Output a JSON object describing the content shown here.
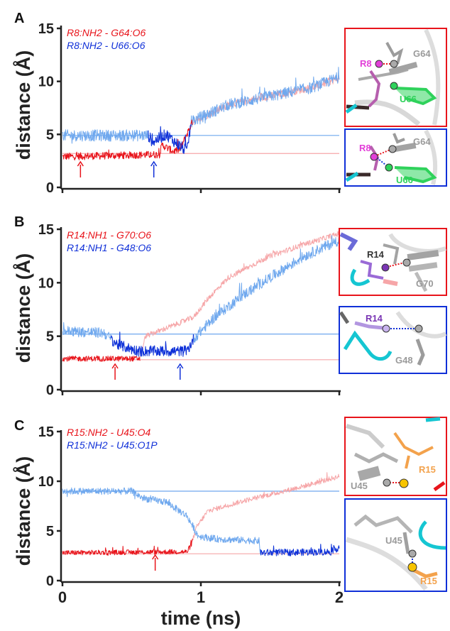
{
  "colors": {
    "red": "#e8141b",
    "blue": "#1030d8",
    "light_red": "#f6a6a8",
    "light_blue": "#6fa8ee",
    "axis": "#222222",
    "gray": "#9a9a9a",
    "magenta": "#e23fd8",
    "green": "#2fd25b",
    "purple": "#7a36b4",
    "orange": "#f3a24c",
    "yellow": "#f7c400",
    "cyan": "#15c6d2"
  },
  "x_axis": {
    "label": "time (ns)",
    "ticks": [
      "0",
      "1",
      "2"
    ],
    "range": [
      0,
      2
    ]
  },
  "chart_data": [
    {
      "type": "line",
      "panel": "A",
      "ylabel": "distance (Å)",
      "xlabel": "time (ns)",
      "xlim": [
        0,
        2
      ],
      "ylim": [
        0,
        15
      ],
      "yticks": [
        "0",
        "5",
        "10",
        "15"
      ],
      "reference_lines": [
        {
          "series": "R8:NH2 - G64:O6",
          "y": 3.2
        },
        {
          "series": "R8:NH2 - U66:O6",
          "y": 4.9
        }
      ],
      "arrows": [
        {
          "series": "R8:NH2 - G64:O6",
          "x": 0.13
        },
        {
          "series": "R8:NH2 - U66:O6",
          "x": 0.66
        }
      ],
      "series": [
        {
          "name": "R8:NH2 - G64:O6",
          "color": "red",
          "breakpoints": [
            [
              0,
              2.9
            ],
            [
              0.7,
              3.1
            ],
            [
              0.72,
              4.0
            ],
            [
              0.8,
              3.4
            ],
            [
              0.85,
              3.6
            ],
            [
              0.94,
              6.2
            ],
            [
              1.2,
              7.8
            ],
            [
              1.5,
              8.6
            ],
            [
              1.8,
              9.4
            ],
            [
              2.0,
              10.3
            ]
          ],
          "dark_until": 0.94,
          "noise": 0.35
        },
        {
          "name": "R8:NH2 - U66:O6",
          "color": "blue",
          "breakpoints": [
            [
              0,
              4.9
            ],
            [
              0.62,
              4.9
            ],
            [
              0.65,
              4.3
            ],
            [
              0.75,
              5.0
            ],
            [
              0.82,
              4.2
            ],
            [
              0.9,
              3.4
            ],
            [
              0.93,
              6.2
            ],
            [
              1.2,
              7.8
            ],
            [
              1.5,
              8.6
            ],
            [
              1.8,
              9.4
            ],
            [
              2.0,
              10.4
            ]
          ],
          "dark_from": 0.62,
          "dark_until": 0.93,
          "noise": 0.55
        }
      ]
    },
    {
      "type": "line",
      "panel": "B",
      "ylabel": "distance (Å)",
      "xlabel": "time (ns)",
      "xlim": [
        0,
        2
      ],
      "ylim": [
        0,
        15
      ],
      "yticks": [
        "0",
        "5",
        "10",
        "15"
      ],
      "reference_lines": [
        {
          "series": "R14:NH1 - G70:O6",
          "y": 2.8
        },
        {
          "series": "R14:NH1 - G48:O6",
          "y": 5.2
        }
      ],
      "arrows": [
        {
          "series": "R14:NH1 - G70:O6",
          "x": 0.38
        },
        {
          "series": "R14:NH1 - G48:O6",
          "x": 0.85
        }
      ],
      "series": [
        {
          "name": "R14:NH1 - G70:O6",
          "color": "red",
          "breakpoints": [
            [
              0,
              2.9
            ],
            [
              0.56,
              2.9
            ],
            [
              0.6,
              5.0
            ],
            [
              0.8,
              6.0
            ],
            [
              0.95,
              6.8
            ],
            [
              1.05,
              8.5
            ],
            [
              1.2,
              10.5
            ],
            [
              1.5,
              12.5
            ],
            [
              1.75,
              13.6
            ],
            [
              2.0,
              14.6
            ]
          ],
          "dark_until": 0.56,
          "noise": 0.25
        },
        {
          "name": "R14:NH1 - G48:O6",
          "color": "blue",
          "breakpoints": [
            [
              0,
              5.5
            ],
            [
              0.3,
              5.3
            ],
            [
              0.4,
              4.2
            ],
            [
              0.55,
              3.6
            ],
            [
              0.9,
              3.6
            ],
            [
              0.95,
              4.8
            ],
            [
              1.1,
              6.8
            ],
            [
              1.3,
              8.8
            ],
            [
              1.5,
              10.5
            ],
            [
              1.75,
              12.5
            ],
            [
              2.0,
              14.0
            ]
          ],
          "dark_from": 0.35,
          "dark_until": 0.95,
          "noise": 0.5
        }
      ]
    },
    {
      "type": "line",
      "panel": "C",
      "ylabel": "distance (Å)",
      "xlabel": "time (ns)",
      "xlim": [
        0,
        2
      ],
      "ylim": [
        0,
        15
      ],
      "yticks": [
        "0",
        "5",
        "10",
        "15"
      ],
      "reference_lines": [
        {
          "series": "R15:NH2 - U45:O4",
          "y": 2.7
        },
        {
          "series": "R15:NH2 - U45:O1P",
          "y": 9.0
        }
      ],
      "arrows": [
        {
          "series": "R15:NH2 - U45:O4",
          "x": 0.67
        }
      ],
      "series": [
        {
          "name": "R15:NH2 - U45:O4",
          "color": "red",
          "breakpoints": [
            [
              0,
              2.8
            ],
            [
              0.9,
              2.9
            ],
            [
              0.93,
              3.6
            ],
            [
              0.97,
              5.4
            ],
            [
              1.05,
              7.0
            ],
            [
              1.3,
              8.0
            ],
            [
              1.6,
              9.0
            ],
            [
              1.85,
              9.9
            ],
            [
              2.0,
              10.5
            ]
          ],
          "dark_until": 0.94,
          "noise": 0.25
        },
        {
          "name": "R15:NH2 - U45:O1P",
          "color": "blue",
          "breakpoints": [
            [
              0,
              9.0
            ],
            [
              0.5,
              9.0
            ],
            [
              0.58,
              8.3
            ],
            [
              0.75,
              7.9
            ],
            [
              0.9,
              6.5
            ],
            [
              0.98,
              4.5
            ],
            [
              1.1,
              4.2
            ],
            [
              1.42,
              4.0
            ],
            [
              1.43,
              2.8
            ],
            [
              1.95,
              2.9
            ],
            [
              2.0,
              3.4
            ]
          ],
          "dark_from": 1.43,
          "noise": 0.35
        }
      ]
    }
  ],
  "legends": {
    "A": [
      "R8:NH2 - G64:O6",
      "R8:NH2 - U66:O6"
    ],
    "B": [
      "R14:NH1 - G70:O6",
      "R14:NH1 - G48:O6"
    ],
    "C": [
      "R15:NH2 - U45:O4",
      "R15:NH2 - U45:O1P"
    ]
  },
  "insets": {
    "A_top": {
      "residue": "R8",
      "label_1": "G64",
      "label_2": "U66"
    },
    "A_bottom": {
      "residue": "R8",
      "label_1": "G64",
      "label_2": "U66"
    },
    "B_top": {
      "residue": "R14",
      "label_1": "G70"
    },
    "B_bottom": {
      "residue": "R14",
      "label_1": "G48"
    },
    "C_top": {
      "residue": "R15",
      "label_1": "U45"
    },
    "C_bottom": {
      "residue": "R15",
      "label_1": "U45"
    }
  }
}
